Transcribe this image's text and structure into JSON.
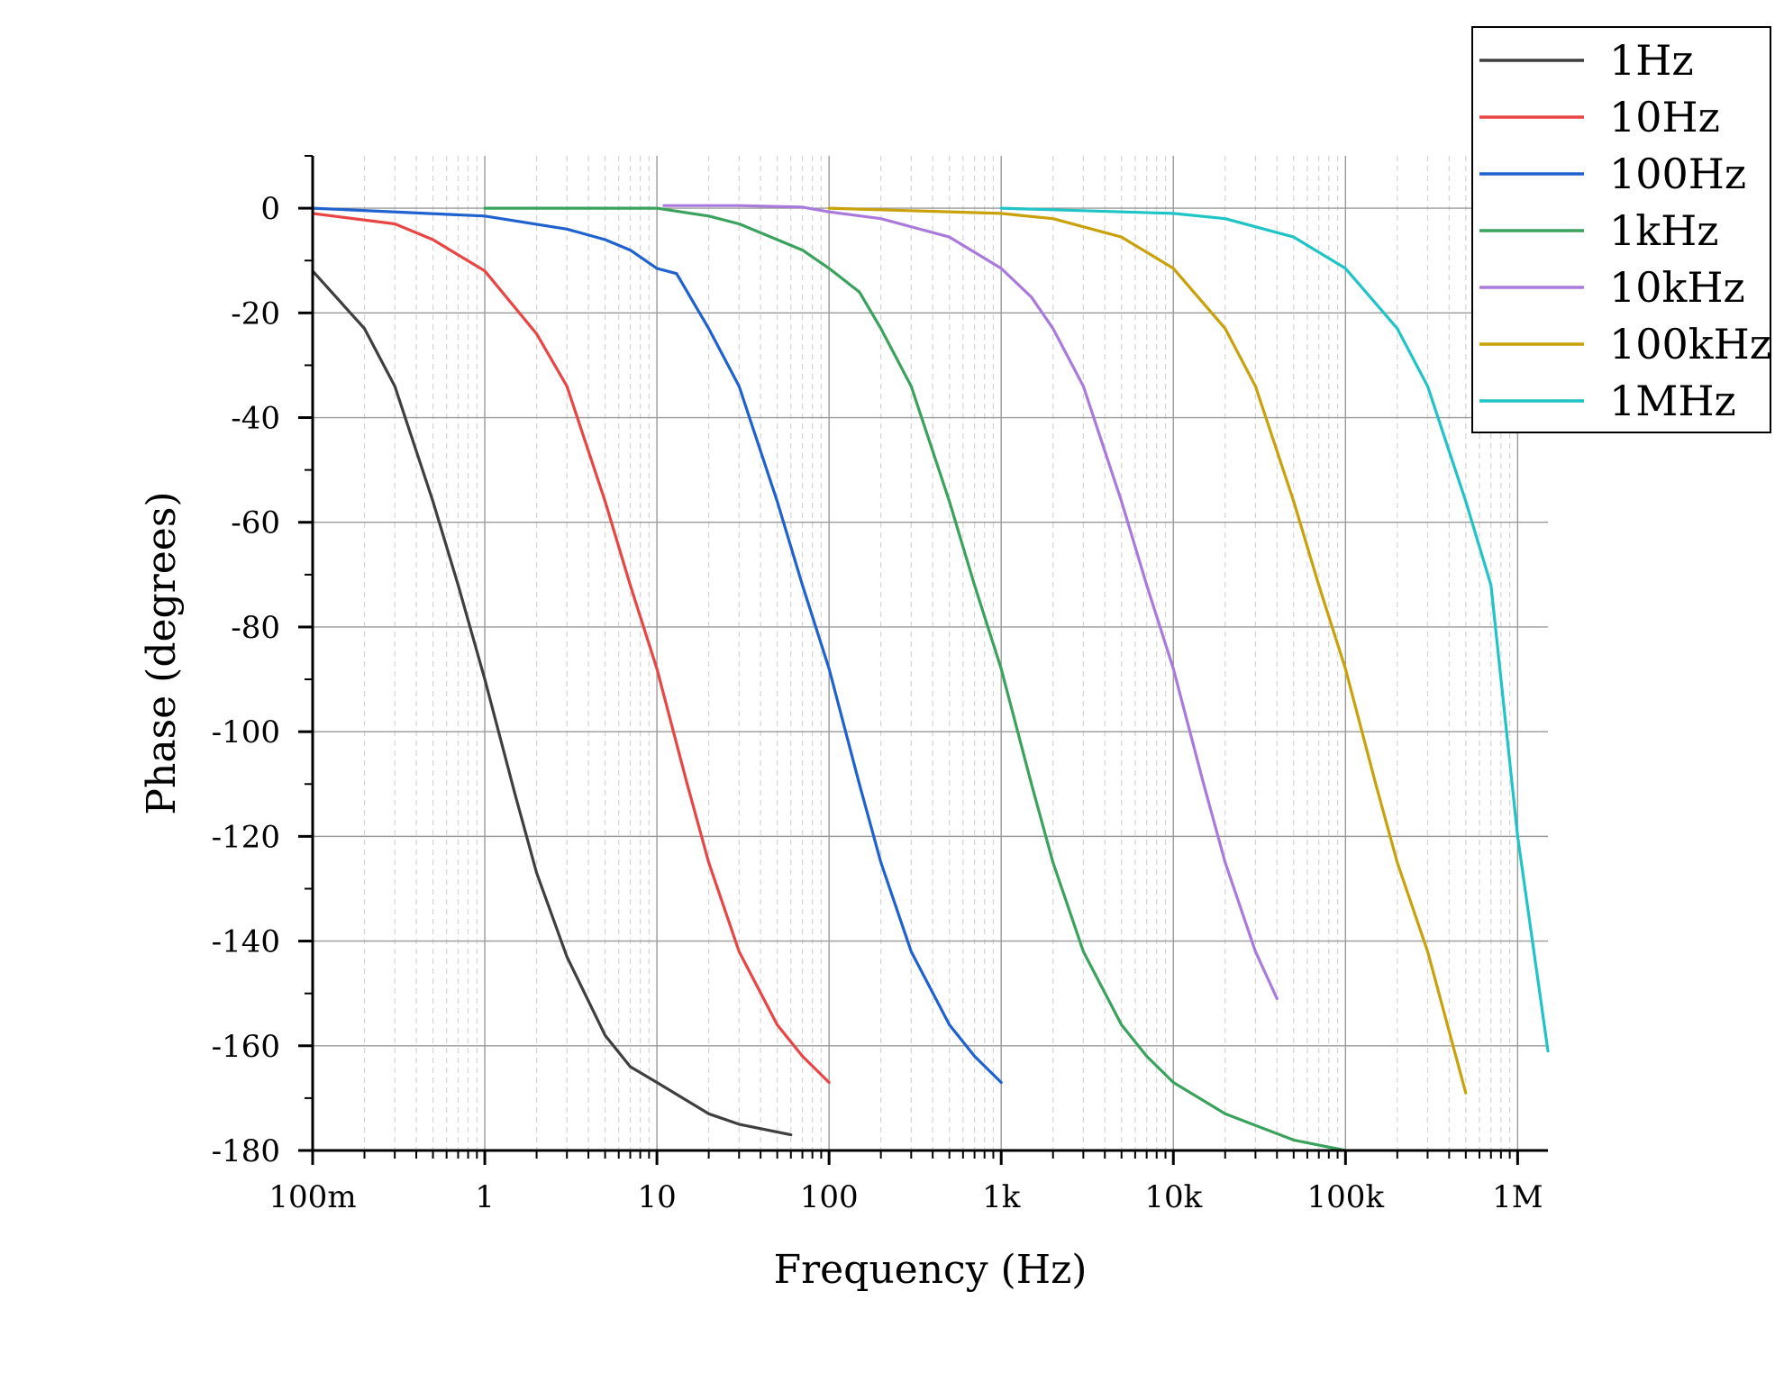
{
  "chart_data": {
    "type": "line",
    "title": "",
    "xlabel": "Frequency (Hz)",
    "ylabel": "Phase (degrees)",
    "xscale": "log",
    "xlim": [
      0.1,
      1500000
    ],
    "ylim": [
      -180,
      10
    ],
    "x_ticks": [
      {
        "value": 0.1,
        "label": "100m"
      },
      {
        "value": 1,
        "label": "1"
      },
      {
        "value": 10,
        "label": "10"
      },
      {
        "value": 100,
        "label": "100"
      },
      {
        "value": 1000,
        "label": "1k"
      },
      {
        "value": 10000,
        "label": "10k"
      },
      {
        "value": 100000,
        "label": "100k"
      },
      {
        "value": 1000000,
        "label": "1M"
      }
    ],
    "y_ticks": [
      {
        "value": 0,
        "label": "0"
      },
      {
        "value": -20,
        "label": "-20"
      },
      {
        "value": -40,
        "label": "-40"
      },
      {
        "value": -60,
        "label": "-60"
      },
      {
        "value": -80,
        "label": "-80"
      },
      {
        "value": -100,
        "label": "-100"
      },
      {
        "value": -120,
        "label": "-120"
      },
      {
        "value": -140,
        "label": "-140"
      },
      {
        "value": -160,
        "label": "-160"
      },
      {
        "value": -180,
        "label": "-180"
      }
    ],
    "grid": true,
    "minor_grid_x": true,
    "legend_position": "top-right",
    "series": [
      {
        "name": "1Hz",
        "color": "#3f3f3f",
        "x": [
          0.1,
          0.2,
          0.3,
          0.5,
          0.7,
          1,
          1.5,
          2,
          3,
          5,
          7,
          10,
          20,
          30,
          60
        ],
        "y": [
          -12,
          -23,
          -34,
          -56,
          -72,
          -90,
          -112,
          -127,
          -143,
          -158,
          -164,
          -167,
          -173,
          -175,
          -177
        ]
      },
      {
        "name": "10Hz",
        "color": "#e84545",
        "x": [
          0.1,
          0.3,
          0.5,
          1,
          2,
          3,
          5,
          7,
          10,
          15,
          20,
          30,
          50,
          70,
          100
        ],
        "y": [
          -1,
          -3,
          -6,
          -12,
          -24,
          -34,
          -56,
          -72,
          -88,
          -110,
          -125,
          -142,
          -156,
          -162,
          -167
        ]
      },
      {
        "name": "100Hz",
        "color": "#1f62cf",
        "x": [
          0.1,
          1,
          3,
          5,
          7,
          10,
          13,
          20,
          30,
          50,
          70,
          100,
          150,
          200,
          300,
          500,
          700,
          1000
        ],
        "y": [
          0,
          -1.5,
          -4,
          -6,
          -8,
          -11.5,
          -12.5,
          -23,
          -34,
          -56,
          -72,
          -88,
          -110,
          -125,
          -142,
          -156,
          -162,
          -167
        ]
      },
      {
        "name": "1kHz",
        "color": "#3aa25d",
        "x": [
          1,
          10,
          20,
          30,
          50,
          70,
          100,
          150,
          200,
          300,
          500,
          700,
          1000,
          1500,
          2000,
          3000,
          5000,
          7000,
          10000,
          20000,
          50000,
          100000
        ],
        "y": [
          0,
          0,
          -1.5,
          -3,
          -6,
          -8,
          -11.5,
          -16,
          -23,
          -34,
          -56,
          -72,
          -88,
          -110,
          -125,
          -142,
          -156,
          -162,
          -167,
          -173,
          -178,
          -180
        ]
      },
      {
        "name": "10kHz",
        "color": "#a97adb",
        "x": [
          11,
          30,
          70,
          100,
          200,
          500,
          1000,
          1500,
          2000,
          3000,
          5000,
          7000,
          10000,
          15000,
          20000,
          30000,
          40000
        ],
        "y": [
          0.5,
          0.5,
          0.2,
          -0.7,
          -2,
          -5.5,
          -11.5,
          -17,
          -23,
          -34,
          -56,
          -72,
          -88,
          -110,
          -125,
          -142,
          -151
        ]
      },
      {
        "name": "100kHz",
        "color": "#c9a10a",
        "x": [
          100,
          1000,
          2000,
          5000,
          10000,
          20000,
          30000,
          50000,
          70000,
          100000,
          150000,
          200000,
          300000,
          500000
        ],
        "y": [
          0,
          -1,
          -2,
          -5.5,
          -11.5,
          -23,
          -34,
          -56,
          -72,
          -88,
          -110,
          -125,
          -142,
          -169
        ]
      },
      {
        "name": "1MHz",
        "color": "#20c4c7",
        "x": [
          1000,
          10000,
          20000,
          50000,
          100000,
          200000,
          300000,
          500000,
          700000,
          1000000,
          1500000
        ],
        "y": [
          0,
          -1,
          -2,
          -5.5,
          -11.5,
          -23,
          -34,
          -56,
          -72,
          -120,
          -161
        ]
      }
    ]
  }
}
